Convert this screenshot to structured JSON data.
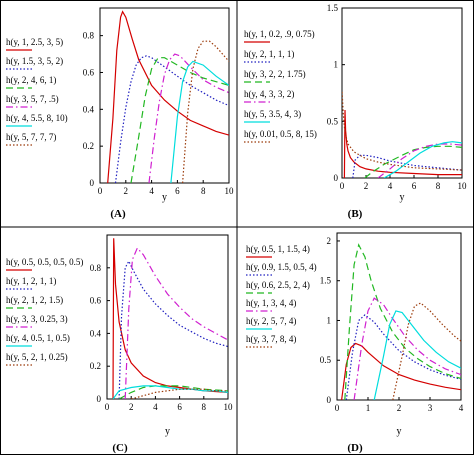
{
  "chart_data": [
    {
      "panel": "(A)",
      "type": "line",
      "xlabel": "y",
      "xlim": [
        0,
        10
      ],
      "ylim": [
        0,
        0.95
      ],
      "xticks": [
        "0",
        "2",
        "4",
        "6",
        "8",
        "10"
      ],
      "yticks": [
        "0",
        "0.2",
        "0.4",
        "0.6",
        "0.8"
      ],
      "series": [
        {
          "name": "h(y, 1, 2.5, 3, 5)",
          "color": "#d40000",
          "dash": "solid",
          "x": [
            0.6,
            1.0,
            1.3,
            1.6,
            1.75,
            2.0,
            2.5,
            3.0,
            4.0,
            5.0,
            6.0,
            7.0,
            8.0,
            9.0,
            10.0
          ],
          "y": [
            0.0,
            0.35,
            0.72,
            0.9,
            0.93,
            0.9,
            0.78,
            0.67,
            0.53,
            0.45,
            0.39,
            0.34,
            0.31,
            0.28,
            0.26
          ]
        },
        {
          "name": "h(y, 1.5, 3, 5, 2)",
          "color": "#2020c0",
          "dash": "dot",
          "x": [
            1.2,
            1.6,
            2.0,
            2.4,
            2.8,
            3.2,
            3.6,
            4.0,
            5.0,
            6.0,
            7.0,
            8.0,
            9.0,
            10.0
          ],
          "y": [
            0.0,
            0.22,
            0.41,
            0.55,
            0.64,
            0.68,
            0.69,
            0.68,
            0.63,
            0.58,
            0.53,
            0.49,
            0.45,
            0.42
          ]
        },
        {
          "name": "h(y, 2, 4, 6, 1)",
          "color": "#22b822",
          "dash": "dash",
          "x": [
            2.4,
            3.0,
            3.5,
            4.0,
            4.5,
            5.0,
            6.0,
            7.0,
            8.0,
            9.0,
            10.0
          ],
          "y": [
            0.0,
            0.25,
            0.47,
            0.62,
            0.68,
            0.68,
            0.64,
            0.6,
            0.57,
            0.55,
            0.53
          ]
        },
        {
          "name": "h(y, 3, 5, 7, .5)",
          "color": "#d020d0",
          "dash": "dashdot",
          "x": [
            3.8,
            4.2,
            4.6,
            5.0,
            5.4,
            5.8,
            6.2,
            7.0,
            8.0,
            9.0,
            10.0
          ],
          "y": [
            0.0,
            0.24,
            0.44,
            0.59,
            0.67,
            0.7,
            0.69,
            0.63,
            0.56,
            0.52,
            0.49
          ]
        },
        {
          "name": "h(y, 4, 5.5, 8, 10)",
          "color": "#00dddd",
          "dash": "solid",
          "x": [
            5.5,
            6.0,
            6.4,
            6.8,
            7.2,
            8.0,
            9.0,
            10.0
          ],
          "y": [
            0.0,
            0.36,
            0.55,
            0.63,
            0.66,
            0.64,
            0.58,
            0.53
          ]
        },
        {
          "name": "h(y, 5, 7, 7, 7)",
          "color": "#9b3a0a",
          "dash": "dot",
          "x": [
            6.4,
            6.8,
            7.2,
            7.6,
            8.0,
            8.5,
            9.0,
            9.5,
            10.0
          ],
          "y": [
            0.0,
            0.38,
            0.62,
            0.73,
            0.77,
            0.77,
            0.74,
            0.7,
            0.66
          ]
        }
      ]
    },
    {
      "panel": "(B)",
      "type": "line",
      "xlabel": "y",
      "xlim": [
        0,
        10
      ],
      "ylim": [
        0,
        1.5
      ],
      "xticks": [
        "0",
        "2",
        "4",
        "6",
        "8",
        "10"
      ],
      "yticks": [
        "0",
        "0.5",
        "1",
        "1.5"
      ],
      "series": [
        {
          "name": "h(y, 1, 0.2, .9, 0.75)",
          "color": "#d40000",
          "dash": "solid",
          "x": [
            0.2,
            0.25,
            0.3,
            0.4,
            0.5,
            0.7,
            1.0,
            1.5,
            2.0,
            3.0,
            4.0,
            6.0,
            8.0,
            10.0
          ],
          "y": [
            0.0,
            0.6,
            0.42,
            0.3,
            0.24,
            0.18,
            0.14,
            0.1,
            0.08,
            0.06,
            0.05,
            0.04,
            0.03,
            0.03
          ]
        },
        {
          "name": "h(y, 2, 1, 1, 1)",
          "color": "#2020c0",
          "dash": "dot",
          "x": [
            0.9,
            1.1,
            1.5,
            2.0,
            3.0,
            4.0,
            6.0,
            8.0,
            10.0
          ],
          "y": [
            0.0,
            0.16,
            0.2,
            0.2,
            0.18,
            0.15,
            0.11,
            0.09,
            0.07
          ]
        },
        {
          "name": "h(y, 3, 2, 2, 1.75)",
          "color": "#22b822",
          "dash": "dash",
          "x": [
            1.9,
            2.5,
            3.5,
            5.0,
            6.0,
            7.0,
            8.0,
            9.0,
            10.0
          ],
          "y": [
            0.0,
            0.05,
            0.12,
            0.2,
            0.25,
            0.27,
            0.28,
            0.28,
            0.27
          ]
        },
        {
          "name": "h(y, 4, 3, 3, 2)",
          "color": "#d020d0",
          "dash": "dashdot",
          "x": [
            3.0,
            4.0,
            5.0,
            6.0,
            7.0,
            8.0,
            9.0,
            10.0
          ],
          "y": [
            0.0,
            0.08,
            0.17,
            0.24,
            0.28,
            0.3,
            0.3,
            0.29
          ]
        },
        {
          "name": "h(y, 5, 3.5, 4, 3)",
          "color": "#00dddd",
          "dash": "solid",
          "x": [
            3.5,
            4.5,
            5.5,
            6.5,
            7.5,
            8.5,
            9.2,
            10.0
          ],
          "y": [
            0.0,
            0.06,
            0.14,
            0.22,
            0.28,
            0.31,
            0.32,
            0.31
          ]
        },
        {
          "name": "h(y, 0.01, 0.5, 8, 15)",
          "color": "#9b3a0a",
          "dash": "dot",
          "x": [
            0.01,
            0.1,
            0.2,
            0.3,
            0.5,
            1.0,
            2.0,
            3.0,
            4.0,
            6.0,
            8.0,
            10.0
          ],
          "y": [
            0.76,
            0.58,
            0.45,
            0.38,
            0.3,
            0.23,
            0.17,
            0.14,
            0.12,
            0.09,
            0.08,
            0.07
          ]
        }
      ]
    },
    {
      "panel": "(C)",
      "type": "line",
      "xlabel": "y",
      "xlim": [
        0,
        10
      ],
      "ylim": [
        0,
        1.0
      ],
      "xticks": [
        "0",
        "2",
        "4",
        "6",
        "8",
        "10"
      ],
      "yticks": [
        "0",
        "0.2",
        "0.4",
        "0.6",
        "0.8"
      ],
      "series": [
        {
          "name": "h(y, 0.5, 0.5, 0.5, 0.5)",
          "color": "#d40000",
          "dash": "solid",
          "x": [
            0.5,
            0.55,
            0.7,
            1.0,
            1.5,
            2.0,
            3.0,
            4.0,
            5.0,
            6.0,
            8.0,
            10.0
          ],
          "y": [
            0.0,
            0.98,
            0.7,
            0.47,
            0.3,
            0.22,
            0.14,
            0.1,
            0.08,
            0.07,
            0.05,
            0.04
          ]
        },
        {
          "name": "h(y, 1, 2, 1, 1)",
          "color": "#2020c0",
          "dash": "dot",
          "x": [
            1.0,
            1.2,
            1.5,
            1.8,
            2.2,
            3.0,
            4.0,
            5.0,
            6.0,
            7.0,
            8.0,
            9.0,
            10.0
          ],
          "y": [
            0.0,
            0.5,
            0.8,
            0.84,
            0.78,
            0.67,
            0.58,
            0.51,
            0.45,
            0.41,
            0.37,
            0.34,
            0.32
          ]
        },
        {
          "name": "h(y, 2, 1, 2, 1.5)",
          "color": "#22b822",
          "dash": "dash",
          "x": [
            1.0,
            2.0,
            3.0,
            4.0,
            5.0,
            6.0,
            7.0,
            8.0,
            10.0
          ],
          "y": [
            0.0,
            0.04,
            0.07,
            0.08,
            0.08,
            0.08,
            0.07,
            0.06,
            0.05
          ]
        },
        {
          "name": "h(y, 3, 3, 0.25, 3)",
          "color": "#d020d0",
          "dash": "dashdot",
          "x": [
            1.5,
            1.8,
            2.1,
            2.5,
            3.0,
            4.0,
            5.0,
            6.0,
            7.0,
            8.0,
            9.0,
            10.0
          ],
          "y": [
            0.0,
            0.55,
            0.85,
            0.92,
            0.88,
            0.75,
            0.64,
            0.56,
            0.49,
            0.44,
            0.4,
            0.36
          ]
        },
        {
          "name": "h(y, 4, 0.5, 1, 0.5)",
          "color": "#00dddd",
          "dash": "solid",
          "x": [
            0.5,
            1.0,
            2.0,
            3.0,
            4.0,
            5.0,
            6.0,
            7.0,
            8.0,
            9.0,
            10.0
          ],
          "y": [
            0.0,
            0.05,
            0.07,
            0.08,
            0.08,
            0.07,
            0.06,
            0.06,
            0.05,
            0.05,
            0.04
          ]
        },
        {
          "name": "h(y, 5, 2, 1, 0.25)",
          "color": "#9b3a0a",
          "dash": "dot",
          "x": [
            2.0,
            3.0,
            4.0,
            5.0,
            6.0,
            7.0,
            8.0,
            9.0,
            10.0
          ],
          "y": [
            0.0,
            0.02,
            0.04,
            0.05,
            0.06,
            0.06,
            0.06,
            0.05,
            0.05
          ]
        }
      ]
    },
    {
      "panel": "(D)",
      "type": "line",
      "xlabel": "y",
      "xlim": [
        0,
        4
      ],
      "ylim": [
        0,
        2.1
      ],
      "xticks": [
        "0",
        "1",
        "2",
        "3",
        "4"
      ],
      "yticks": [
        "0",
        "0.5",
        "1",
        "1.5",
        "2"
      ],
      "series": [
        {
          "name": "h(y, 0.5, 1, 1.5, 4)",
          "color": "#d40000",
          "dash": "solid",
          "x": [
            0.15,
            0.3,
            0.45,
            0.6,
            0.8,
            1.0,
            1.5,
            2.0,
            2.5,
            3.0,
            3.5,
            4.0
          ],
          "y": [
            0.0,
            0.45,
            0.66,
            0.71,
            0.68,
            0.6,
            0.43,
            0.32,
            0.25,
            0.2,
            0.16,
            0.13
          ]
        },
        {
          "name": "h(y, 0.9, 1.5, 0.5, 4)",
          "color": "#2020c0",
          "dash": "dot",
          "x": [
            0.3,
            0.5,
            0.7,
            0.9,
            1.2,
            1.5,
            2.0,
            2.5,
            3.0,
            3.5,
            4.0
          ],
          "y": [
            0.0,
            0.6,
            1.0,
            1.07,
            0.98,
            0.83,
            0.62,
            0.48,
            0.38,
            0.31,
            0.26
          ]
        },
        {
          "name": "h(y, 0.6, 2.5, 2, 4)",
          "color": "#22b822",
          "dash": "dash",
          "x": [
            0.25,
            0.4,
            0.55,
            0.7,
            0.9,
            1.1,
            1.4,
            1.8,
            2.2,
            2.6,
            3.0,
            3.5,
            4.0
          ],
          "y": [
            0.0,
            0.9,
            1.7,
            1.95,
            1.8,
            1.5,
            1.15,
            0.85,
            0.65,
            0.52,
            0.42,
            0.33,
            0.27
          ]
        },
        {
          "name": "h(y, 1, 3, 4, 4)",
          "color": "#d020d0",
          "dash": "dashdot",
          "x": [
            0.55,
            0.8,
            1.0,
            1.2,
            1.5,
            1.8,
            2.2,
            2.6,
            3.0,
            3.5,
            4.0
          ],
          "y": [
            0.0,
            0.7,
            1.12,
            1.28,
            1.2,
            1.02,
            0.8,
            0.63,
            0.5,
            0.39,
            0.32
          ]
        },
        {
          "name": "h(y, 2, 5, 7, 4)",
          "color": "#00dddd",
          "dash": "solid",
          "x": [
            1.2,
            1.5,
            1.7,
            1.9,
            2.1,
            2.4,
            2.8,
            3.2,
            3.6,
            4.0
          ],
          "y": [
            0.0,
            0.55,
            0.95,
            1.12,
            1.1,
            0.95,
            0.75,
            0.6,
            0.48,
            0.4
          ]
        },
        {
          "name": "h(y, 3, 7, 8, 4)",
          "color": "#9b3a0a",
          "dash": "dot",
          "x": [
            1.8,
            2.1,
            2.3,
            2.5,
            2.7,
            3.0,
            3.4,
            3.8,
            4.0
          ],
          "y": [
            0.0,
            0.55,
            0.95,
            1.18,
            1.22,
            1.12,
            0.95,
            0.8,
            0.74
          ]
        }
      ]
    }
  ]
}
